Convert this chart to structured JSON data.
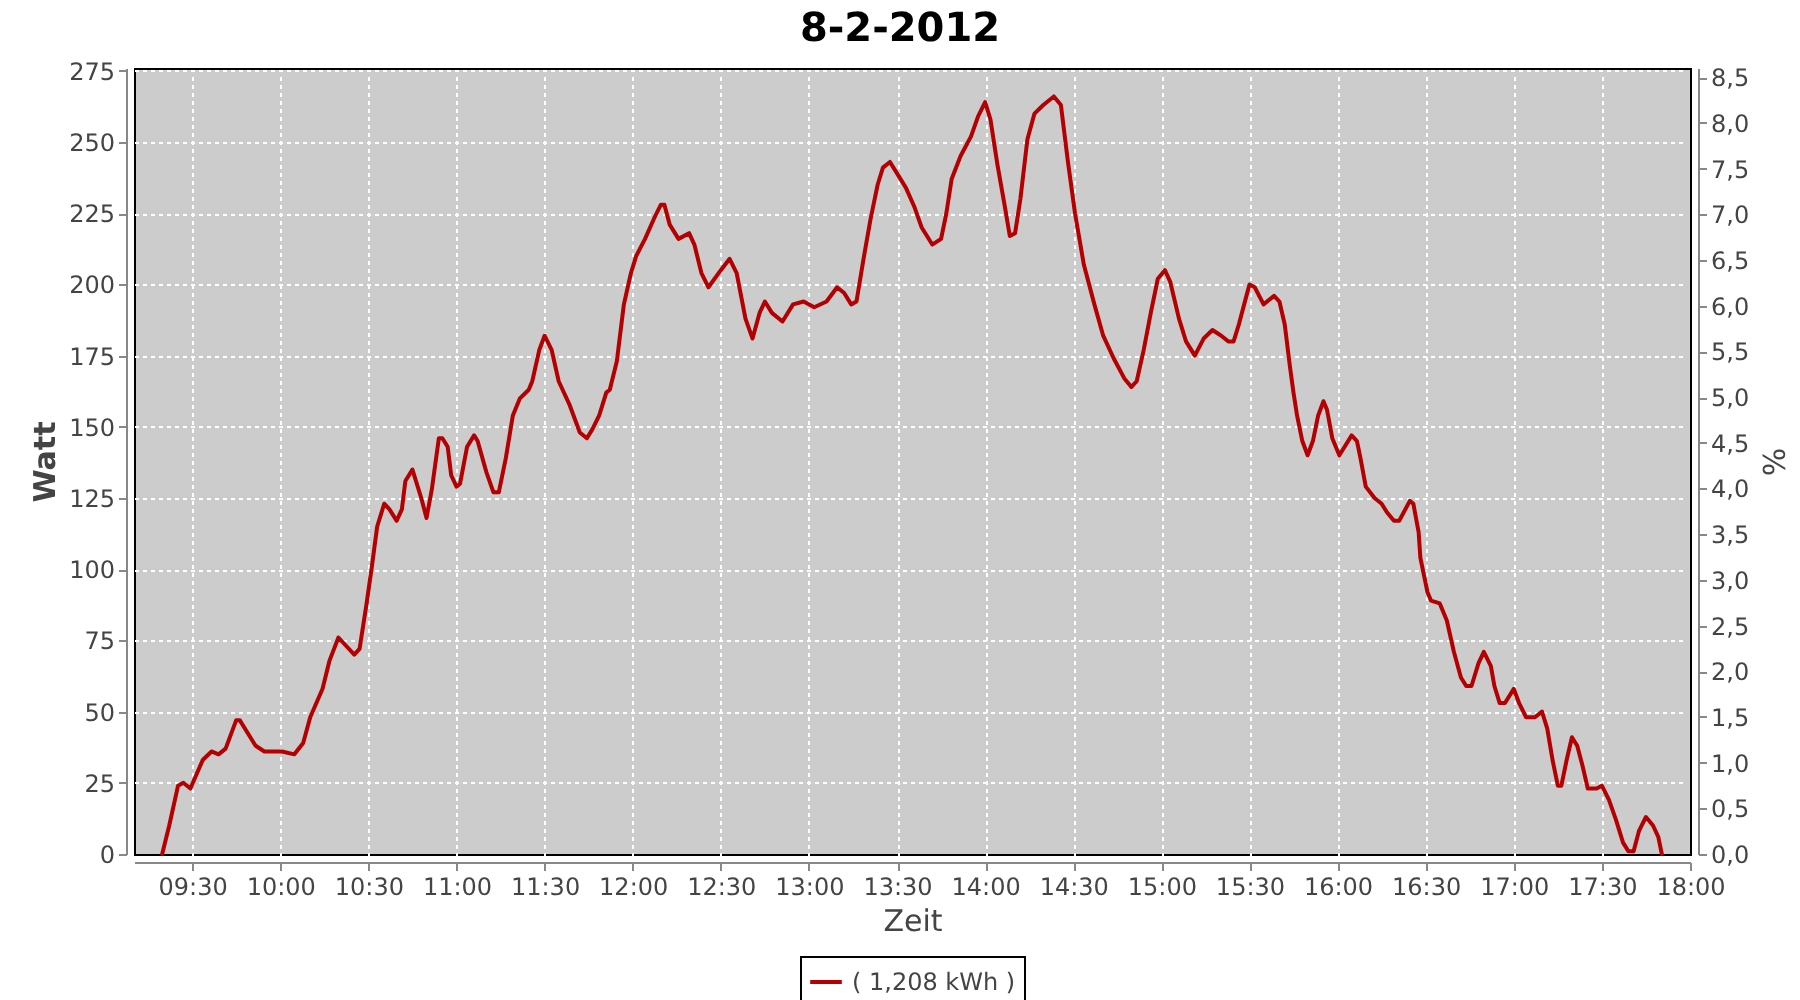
{
  "chart_data": {
    "type": "line",
    "title": "8-2-2012",
    "xlabel": "Zeit",
    "ylabel": "Watt",
    "y2label": "%",
    "xlim": [
      9.17,
      18
    ],
    "xticks": [
      {
        "value": 9.5,
        "label": "09:30"
      },
      {
        "value": 10,
        "label": "10:00"
      },
      {
        "value": 10.5,
        "label": "10:30"
      },
      {
        "value": 11,
        "label": "11:00"
      },
      {
        "value": 11.5,
        "label": "11:30"
      },
      {
        "value": 12,
        "label": "12:00"
      },
      {
        "value": 12.5,
        "label": "12:30"
      },
      {
        "value": 13,
        "label": "13:00"
      },
      {
        "value": 13.5,
        "label": "13:30"
      },
      {
        "value": 14,
        "label": "14:00"
      },
      {
        "value": 14.5,
        "label": "14:30"
      },
      {
        "value": 15,
        "label": "15:00"
      },
      {
        "value": 15.5,
        "label": "15:30"
      },
      {
        "value": 16,
        "label": "16:00"
      },
      {
        "value": 16.5,
        "label": "16:30"
      },
      {
        "value": 17,
        "label": "17:00"
      },
      {
        "value": 17.5,
        "label": "17:30"
      },
      {
        "value": 18,
        "label": "18:00"
      }
    ],
    "ylim": [
      0,
      276
    ],
    "yticks": [
      0,
      25,
      50,
      75,
      100,
      125,
      150,
      175,
      200,
      225,
      250,
      275
    ],
    "y2lim": [
      0,
      8.6
    ],
    "y2ticks": [
      {
        "value": 0,
        "label": "0,0"
      },
      {
        "value": 0.5,
        "label": "0,5"
      },
      {
        "value": 1,
        "label": "1,0"
      },
      {
        "value": 1.5,
        "label": "1,5"
      },
      {
        "value": 2,
        "label": "2,0"
      },
      {
        "value": 2.5,
        "label": "2,5"
      },
      {
        "value": 3,
        "label": "3,0"
      },
      {
        "value": 3.5,
        "label": "3,5"
      },
      {
        "value": 4,
        "label": "4,0"
      },
      {
        "value": 4.5,
        "label": "4,5"
      },
      {
        "value": 5,
        "label": "5,0"
      },
      {
        "value": 5.5,
        "label": "5,5"
      },
      {
        "value": 6,
        "label": "6,0"
      },
      {
        "value": 6.5,
        "label": "6,5"
      },
      {
        "value": 7,
        "label": "7,0"
      },
      {
        "value": 7.5,
        "label": "7,5"
      },
      {
        "value": 8,
        "label": "8,0"
      },
      {
        "value": 8.5,
        "label": "8,5"
      }
    ],
    "grid": true,
    "legend": "bottom",
    "x": [
      9.33,
      9.37,
      9.42,
      9.45,
      9.49,
      9.56,
      9.61,
      9.65,
      9.69,
      9.75,
      9.77,
      9.86,
      9.91,
      10.01,
      10.08,
      10.13,
      10.17,
      10.24,
      10.28,
      10.33,
      10.36,
      10.42,
      10.45,
      10.49,
      10.52,
      10.55,
      10.59,
      10.62,
      10.66,
      10.69,
      10.71,
      10.75,
      10.8,
      10.83,
      10.86,
      10.9,
      10.92,
      10.95,
      10.97,
      11,
      11.02,
      11.06,
      11.1,
      11.12,
      11.17,
      11.21,
      11.24,
      11.28,
      11.32,
      11.36,
      11.41,
      11.43,
      11.47,
      11.5,
      11.54,
      11.58,
      11.64,
      11.7,
      11.74,
      11.77,
      11.81,
      11.85,
      11.87,
      11.91,
      11.95,
      11.99,
      12.02,
      12.07,
      12.12,
      12.16,
      12.18,
      12.21,
      12.26,
      12.32,
      12.35,
      12.39,
      12.43,
      12.5,
      12.55,
      12.59,
      12.64,
      12.68,
      12.72,
      12.75,
      12.79,
      12.85,
      12.91,
      12.97,
      13.03,
      13.1,
      13.16,
      13.2,
      13.24,
      13.27,
      13.31,
      13.35,
      13.39,
      13.42,
      13.46,
      13.5,
      13.55,
      13.6,
      13.64,
      13.7,
      13.75,
      13.78,
      13.81,
      13.86,
      13.92,
      13.96,
      14,
      14.03,
      14.07,
      14.11,
      14.14,
      14.17,
      14.2,
      14.24,
      14.28,
      14.33,
      14.39,
      14.43,
      14.47,
      14.51,
      14.56,
      14.62,
      14.67,
      14.73,
      14.79,
      14.83,
      14.86,
      14.9,
      14.94,
      14.98,
      15.02,
      15.05,
      15.1,
      15.14,
      15.19,
      15.24,
      15.29,
      15.34,
      15.38,
      15.41,
      15.44,
      15.47,
      15.5,
      15.53,
      15.58,
      15.64,
      15.67,
      15.7,
      15.73,
      15.75,
      15.77,
      15.8,
      15.83,
      15.86,
      15.89,
      15.92,
      15.94,
      15.97,
      16.01,
      16.04,
      16.08,
      16.11,
      16.13,
      16.16,
      16.21,
      16.25,
      16.28,
      16.32,
      16.35,
      16.41,
      16.43,
      16.46,
      16.47,
      16.51,
      16.53,
      16.58,
      16.62,
      16.66,
      16.7,
      16.73,
      16.76,
      16.8,
      16.83,
      16.87,
      16.89,
      16.92,
      16.95,
      17,
      17.03,
      17.07,
      17.12,
      17.16,
      17.19,
      17.22,
      17.25,
      17.27,
      17.3,
      17.33,
      17.36,
      17.39,
      17.42,
      17.47,
      17.5,
      17.54,
      17.58,
      17.62,
      17.65,
      17.68,
      17.71,
      17.75,
      17.79,
      17.82,
      17.84
    ],
    "series": [
      {
        "name": "( 1,208 kWh )",
        "color": "#b40000",
        "values": [
          0,
          10,
          24,
          25,
          23,
          33,
          36,
          35,
          37,
          47,
          47,
          38,
          36,
          36,
          35,
          39,
          48,
          58,
          68,
          76,
          74,
          70,
          72,
          88,
          101,
          115,
          123,
          121,
          117,
          121,
          131,
          135,
          125,
          118,
          128,
          146,
          146,
          143,
          133,
          129,
          130,
          143,
          147,
          145,
          134,
          127,
          127,
          139,
          154,
          160,
          163,
          166,
          177,
          182,
          177,
          166,
          158,
          148,
          146,
          149,
          154,
          162,
          163,
          173,
          193,
          204,
          210,
          216,
          223,
          228,
          228,
          221,
          216,
          218,
          214,
          204,
          199,
          205,
          209,
          204,
          188,
          181,
          190,
          194,
          190,
          187,
          193,
          194,
          192,
          194,
          199,
          197,
          193,
          194,
          209,
          223,
          235,
          241,
          243,
          239,
          234,
          227,
          220,
          214,
          216,
          225,
          237,
          245,
          252,
          259,
          264,
          258,
          242,
          228,
          217,
          218,
          230,
          251,
          260,
          263,
          266,
          263,
          243,
          225,
          207,
          193,
          182,
          174,
          167,
          164,
          166,
          177,
          190,
          202,
          205,
          201,
          188,
          180,
          175,
          181,
          184,
          182,
          180,
          180,
          186,
          193,
          200,
          199,
          193,
          196,
          194,
          186,
          171,
          162,
          154,
          145,
          140,
          145,
          154,
          159,
          156,
          146,
          140,
          143,
          147,
          145,
          139,
          129,
          125,
          123,
          120,
          117,
          117,
          124,
          123,
          113,
          104,
          92,
          89,
          88,
          82,
          71,
          62,
          59,
          59,
          67,
          71,
          66,
          59,
          53,
          53,
          58,
          53,
          48,
          48,
          50,
          44,
          33,
          24,
          24,
          33,
          41,
          38,
          31,
          23,
          23,
          24,
          19,
          12,
          4,
          1,
          1,
          8,
          13,
          10,
          6,
          0
        ]
      }
    ]
  }
}
